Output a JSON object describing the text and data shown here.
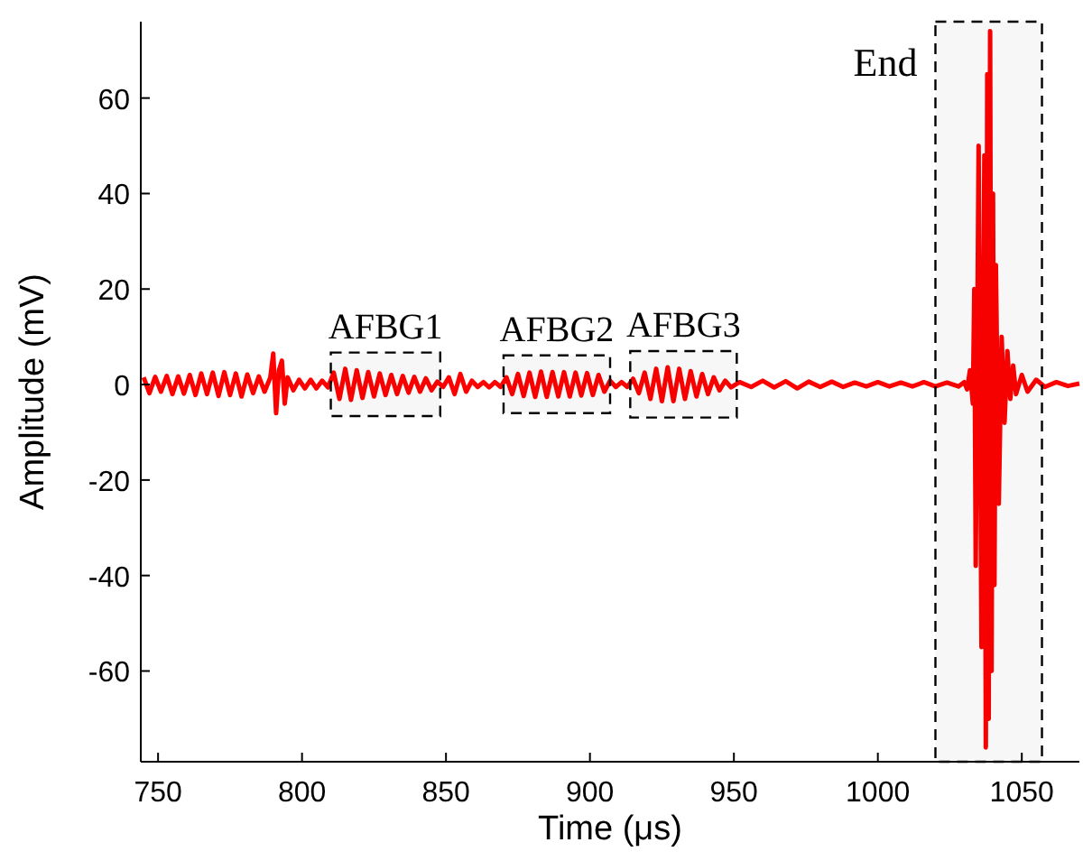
{
  "chart_data": {
    "type": "line",
    "xlabel": "Time (μs)",
    "ylabel": "Amplitude (mV)",
    "xlim": [
      744,
      1070
    ],
    "ylim": [
      -79,
      76
    ],
    "xticks": [
      750,
      800,
      850,
      900,
      950,
      1000,
      1050
    ],
    "yticks": [
      -60,
      -40,
      -20,
      0,
      20,
      40,
      60
    ],
    "grid": false,
    "marker": "none",
    "line_style": "solid",
    "bands": [
      {
        "axis": "x",
        "from": 810,
        "to": 848,
        "label": "AFBG1",
        "color": "#000000"
      },
      {
        "axis": "x",
        "from": 870,
        "to": 907,
        "label": "AFBG2",
        "color": "#000000"
      },
      {
        "axis": "x",
        "from": 914,
        "to": 951,
        "label": "AFBG3",
        "color": "#000000"
      },
      {
        "axis": "x",
        "from": 1020,
        "to": 1057,
        "label": "End",
        "color": "#000000"
      }
    ],
    "series": [
      {
        "color": "#ff0000",
        "x": [
          745,
          747,
          749,
          751,
          753,
          755,
          757,
          759,
          761,
          763,
          765,
          767,
          769,
          771,
          773,
          775,
          777,
          779,
          781,
          783,
          785,
          787,
          789,
          790,
          791,
          792,
          793,
          794,
          795,
          797,
          799,
          801,
          803,
          805,
          807,
          809,
          811,
          813,
          815,
          817,
          819,
          821,
          823,
          825,
          827,
          829,
          831,
          833,
          835,
          837,
          839,
          841,
          843,
          845,
          847,
          849,
          851,
          853,
          855,
          857,
          859,
          861,
          863,
          865,
          867,
          869,
          871,
          873,
          875,
          877,
          879,
          881,
          883,
          885,
          887,
          889,
          891,
          893,
          895,
          897,
          899,
          901,
          903,
          905,
          907,
          909,
          911,
          913,
          915,
          917,
          919,
          921,
          923,
          925,
          927,
          929,
          931,
          933,
          935,
          937,
          939,
          941,
          943,
          945,
          947,
          949,
          952,
          956,
          960,
          964,
          968,
          972,
          976,
          980,
          984,
          988,
          992,
          996,
          1000,
          1004,
          1008,
          1012,
          1016,
          1020,
          1024,
          1028,
          1030,
          1031,
          1032,
          1033,
          1033.5,
          1034,
          1035,
          1036,
          1037,
          1037.5,
          1038,
          1038.5,
          1039,
          1039.5,
          1040,
          1040.5,
          1041,
          1042,
          1043,
          1044,
          1045,
          1046,
          1047,
          1048,
          1050,
          1052,
          1055,
          1058,
          1062,
          1066,
          1070
        ],
        "values": [
          1.5,
          -1.8,
          1.6,
          -1.5,
          1.8,
          -2,
          1.7,
          -1.9,
          2,
          -2.2,
          2.3,
          -2,
          2.5,
          -2.4,
          2.6,
          -2.2,
          2.3,
          -2.5,
          2.1,
          -1.8,
          1.7,
          -1.5,
          1.5,
          6.5,
          -6,
          3,
          5,
          -4,
          1.5,
          -1.2,
          1,
          -0.8,
          1,
          -0.8,
          0.8,
          -0.6,
          2.5,
          -3,
          3.3,
          -3.2,
          3,
          -2.8,
          2.6,
          -2.5,
          2.3,
          -2.2,
          2,
          -2,
          1.8,
          -1.7,
          1.6,
          -1.5,
          1.3,
          -1.2,
          0.6,
          -0.5,
          1.5,
          -2,
          2.2,
          -1.5,
          0.8,
          -0.5,
          0.5,
          -0.6,
          0.5,
          -0.5,
          1.5,
          -2,
          2.2,
          -2.4,
          2.5,
          -2.6,
          2.7,
          -2.6,
          2.6,
          -2.5,
          2.6,
          -2.5,
          2.5,
          -2.3,
          2.4,
          -2.2,
          2,
          -1.5,
          0.8,
          -0.5,
          0.5,
          -0.5,
          1.2,
          -1.8,
          2.5,
          -3,
          3.3,
          -3.5,
          3.6,
          -3.5,
          3.3,
          -3,
          2.8,
          -2.5,
          2.2,
          -2,
          1.5,
          -1.2,
          0.8,
          -0.6,
          0.5,
          -0.5,
          0.8,
          -0.6,
          0.7,
          -0.8,
          0.6,
          -0.5,
          0.6,
          -0.5,
          0.4,
          -0.4,
          0.5,
          -0.4,
          0.4,
          -0.4,
          0.5,
          -0.4,
          0.4,
          -0.4,
          0.5,
          -1,
          3,
          -4,
          20,
          -38,
          50,
          -55,
          48,
          -76,
          65,
          -70,
          74,
          -60,
          40,
          -42,
          25,
          -25,
          10,
          -8,
          7,
          -3,
          4,
          -2,
          2,
          -1.5,
          1,
          -0.5,
          0.5,
          -0.3,
          0.2
        ]
      }
    ]
  }
}
